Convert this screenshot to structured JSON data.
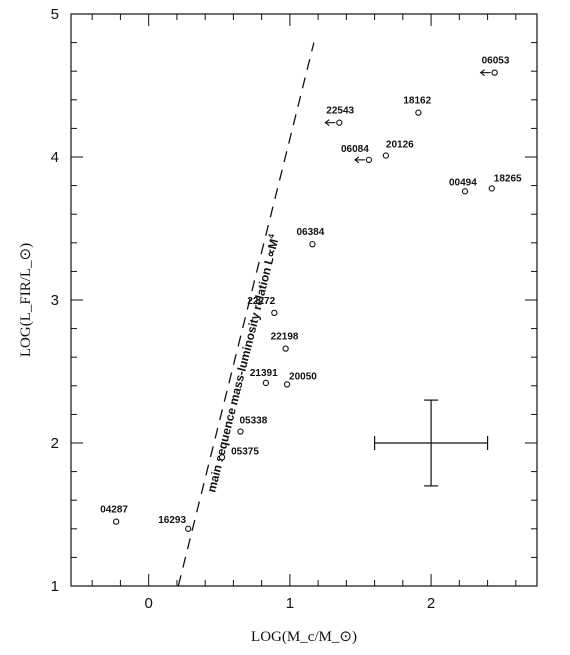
{
  "chart_data": {
    "type": "scatter",
    "xlabel": "LOG(M_c/M_⊙)",
    "ylabel": "LOG(L_FIR/L_⊙)",
    "xlim": [
      -0.55,
      2.75
    ],
    "ylim": [
      1,
      5
    ],
    "xticks": [
      0,
      1,
      2
    ],
    "yticks": [
      1,
      2,
      3,
      4,
      5
    ],
    "grid": false,
    "points": [
      {
        "label": "06053",
        "x": 2.45,
        "y": 4.59,
        "upper_limit_arrow": true
      },
      {
        "label": "22543",
        "x": 1.35,
        "y": 4.24,
        "upper_limit_arrow": true
      },
      {
        "label": "18162",
        "x": 1.91,
        "y": 4.31,
        "upper_limit_arrow": false
      },
      {
        "label": "06084",
        "x": 1.56,
        "y": 3.98,
        "upper_limit_arrow": true
      },
      {
        "label": "20126",
        "x": 1.68,
        "y": 4.01,
        "upper_limit_arrow": false
      },
      {
        "label": "00494",
        "x": 2.24,
        "y": 3.76,
        "upper_limit_arrow": false
      },
      {
        "label": "18265",
        "x": 2.43,
        "y": 3.78,
        "upper_limit_arrow": false
      },
      {
        "label": "06384",
        "x": 1.16,
        "y": 3.39,
        "upper_limit_arrow": false
      },
      {
        "label": "22272",
        "x": 0.89,
        "y": 2.91,
        "upper_limit_arrow": false
      },
      {
        "label": "22198",
        "x": 0.97,
        "y": 2.66,
        "upper_limit_arrow": false
      },
      {
        "label": "21391",
        "x": 0.83,
        "y": 2.42,
        "upper_limit_arrow": false
      },
      {
        "label": "20050",
        "x": 0.98,
        "y": 2.41,
        "upper_limit_arrow": false
      },
      {
        "label": "05338",
        "x": 0.65,
        "y": 2.08,
        "upper_limit_arrow": false
      },
      {
        "label": "05375",
        "x": 0.52,
        "y": 1.9,
        "upper_limit_arrow": false
      },
      {
        "label": "04287",
        "x": -0.23,
        "y": 1.45,
        "upper_limit_arrow": false
      },
      {
        "label": "16293",
        "x": 0.28,
        "y": 1.4,
        "upper_limit_arrow": false
      }
    ],
    "relation_line": {
      "label": "main sequence mass-luminosity relation L∝M",
      "label_exponent": "4",
      "x": [
        0.21,
        1.17
      ],
      "y": [
        1.0,
        4.8
      ]
    },
    "error_bar_example": {
      "x": 2.0,
      "y": 2.0,
      "x_err": [
        1.6,
        2.4
      ],
      "y_err": [
        1.7,
        2.3
      ]
    }
  }
}
